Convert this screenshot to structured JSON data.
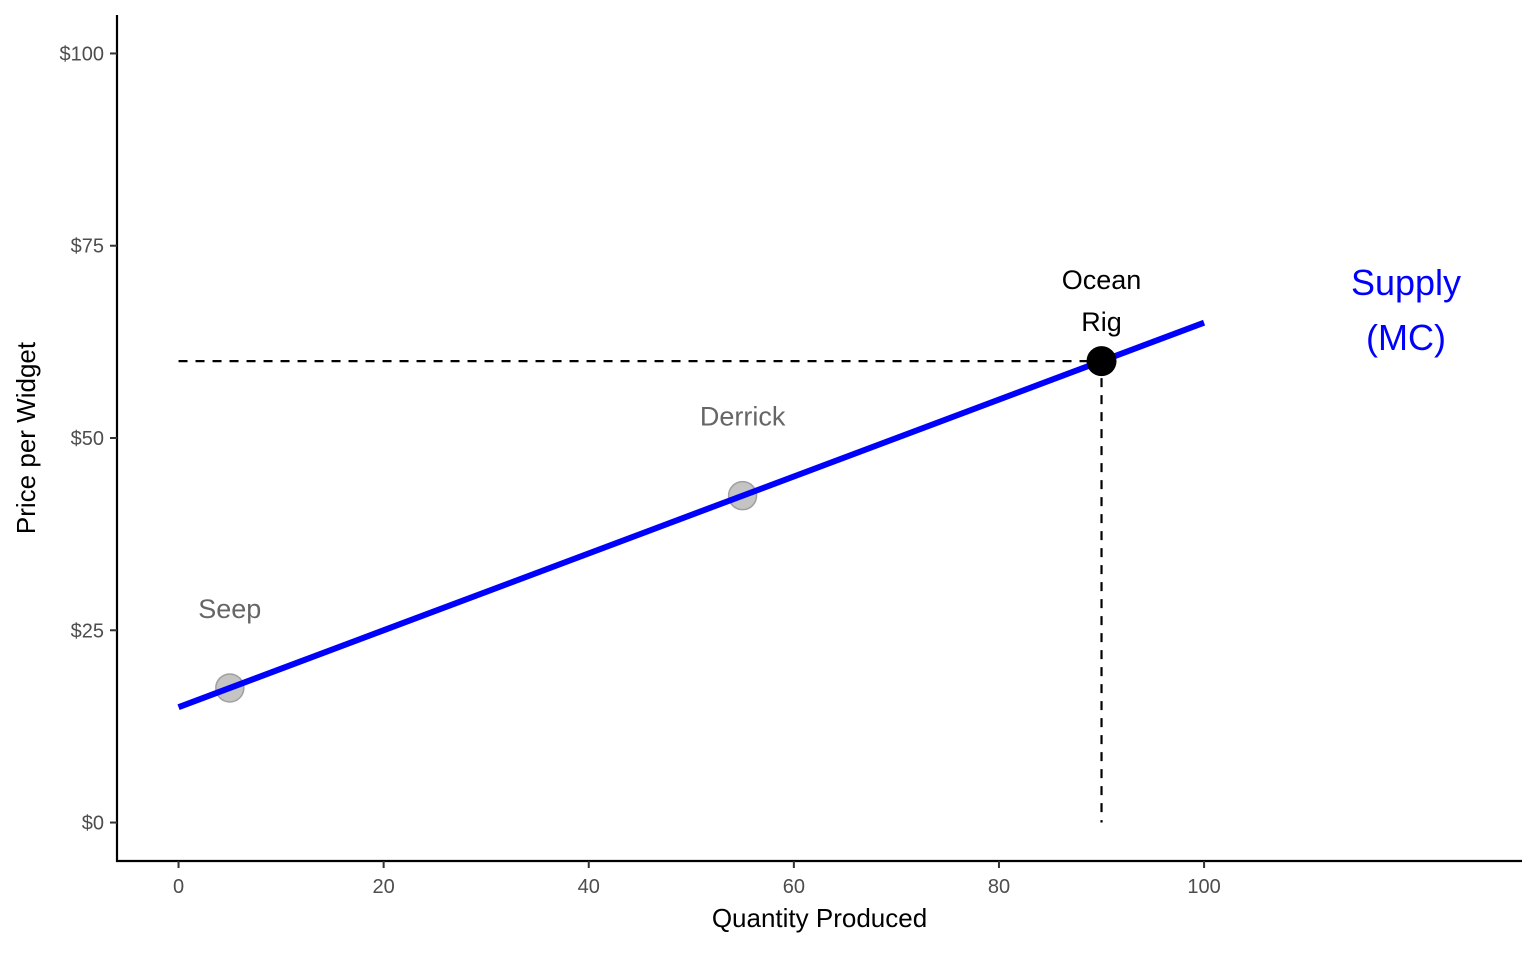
{
  "chart_data": {
    "type": "line",
    "title": "",
    "xlabel": "Quantity Produced",
    "ylabel": "Price per Widget",
    "xlim": [
      -6,
      131
    ],
    "ylim": [
      -5,
      105
    ],
    "grid": false,
    "x_ticks": [
      0,
      20,
      40,
      60,
      80,
      100
    ],
    "x_tick_labels": [
      "0",
      "20",
      "40",
      "60",
      "80",
      "100"
    ],
    "y_ticks": [
      0,
      25,
      50,
      75,
      100
    ],
    "y_tick_labels": [
      "$0",
      "$25",
      "$50",
      "$75",
      "$100"
    ],
    "series": [
      {
        "name": "Supply (MC)",
        "label_lines": [
          "Supply",
          "(MC)"
        ],
        "color": "#0000ff",
        "x": [
          0,
          100
        ],
        "y": [
          15,
          65
        ]
      }
    ],
    "points": [
      {
        "label": "Seep",
        "x": 5,
        "y": 17.5,
        "highlight": false
      },
      {
        "label": "Derrick",
        "x": 55,
        "y": 42.5,
        "highlight": false
      },
      {
        "label_lines": [
          "Ocean",
          "Rig"
        ],
        "x": 90,
        "y": 60,
        "highlight": true
      }
    ],
    "reference_lines": {
      "x": 90,
      "y": 60,
      "style": "dashed",
      "color": "#000000"
    }
  }
}
